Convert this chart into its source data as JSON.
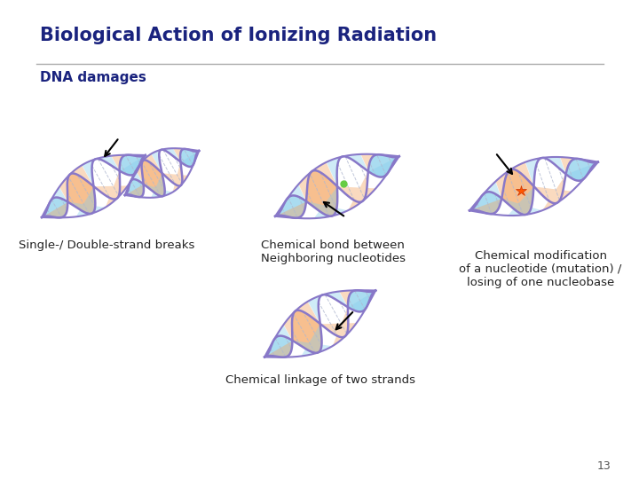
{
  "title": "Biological Action of Ionizing Radiation",
  "subtitle": "DNA damages",
  "title_color": "#1a237e",
  "subtitle_color": "#1a237e",
  "background_color": "#ffffff",
  "separator_color": "#aaaaaa",
  "page_number": "13",
  "labels": {
    "img1": "Single-/ Double-strand breaks",
    "img2": "Chemical bond between\nNeighboring nucleotides",
    "img3": "Chemical modification\nof a nucleotide (mutation) /\nlosing of one nucleobase",
    "img4": "Chemical linkage of two strands"
  },
  "label_fontsize": 9.5,
  "title_fontsize": 15,
  "subtitle_fontsize": 11,
  "strand_color": "#8878c8",
  "fill_blue": "#87ceeb",
  "fill_orange": "#f4a460",
  "fill_white": "#ffffff",
  "rung_color": "#b0b8d0",
  "label_color": "#222222"
}
